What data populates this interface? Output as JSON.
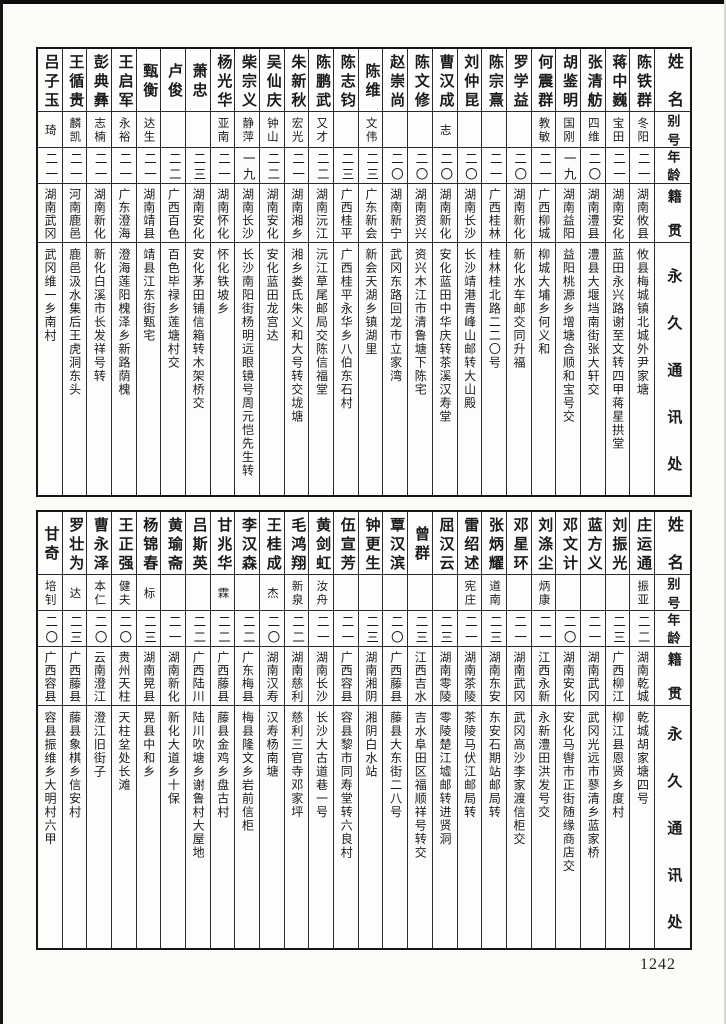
{
  "page": {
    "number": "1242"
  },
  "headers": {
    "name": "姓名",
    "alias": "别号",
    "age": "年龄",
    "native": "籍贯",
    "address": "永久通讯处"
  },
  "tables": [
    {
      "people": [
        {
          "name": "陈铁群",
          "alias": "冬阳",
          "age": "二一",
          "native": "湖南攸县",
          "address": "攸县梅城镇北城外尹家塘"
        },
        {
          "name": "蒋中巍",
          "alias": "宝田",
          "age": "二一",
          "native": "湖南安化",
          "address": "蓝田永兴路谢至文转四甲蒋星拱堂"
        },
        {
          "name": "张清舫",
          "alias": "四维",
          "age": "二〇",
          "native": "湖南澧县",
          "address": "澧县大堰垱南街张大轩交"
        },
        {
          "name": "胡鉴明",
          "alias": "国刚",
          "age": "一九",
          "native": "湖南益阳",
          "address": "益阳桃源乡增塘合顺和宝号交"
        },
        {
          "name": "何震群",
          "alias": "教敏",
          "age": "二一",
          "native": "广西柳城",
          "address": "柳城大埔乡何义和"
        },
        {
          "name": "罗学益",
          "alias": "",
          "age": "二〇",
          "native": "湖南新化",
          "address": "新化水车邮交同升福"
        },
        {
          "name": "陈宗熹",
          "alias": "",
          "age": "二一",
          "native": "广西桂林",
          "address": "桂林桂北路二二〇号"
        },
        {
          "name": "刘仲昆",
          "alias": "",
          "age": "二〇",
          "native": "湖南长沙",
          "address": "长沙靖港青峰山邮转大山殿"
        },
        {
          "name": "曹汉成",
          "alias": "志",
          "age": "二〇",
          "native": "湖南新化",
          "address": "安化蓝田中华庆转茶溪汉寿堂"
        },
        {
          "name": "陈文修",
          "alias": "",
          "age": "二〇",
          "native": "湖南资兴",
          "address": "资兴木江市清鲁塘下陈宅"
        },
        {
          "name": "赵崇尚",
          "alias": "",
          "age": "二〇",
          "native": "湖南新宁",
          "address": "武冈东路回龙市立家湾"
        },
        {
          "name": "陈维",
          "alias": "文伟",
          "age": "二三",
          "native": "广东新会",
          "address": "新会天湖乡镇湖里"
        },
        {
          "name": "陈志钧",
          "alias": "",
          "age": "二三",
          "native": "广西桂平",
          "address": "广西桂平永华乡八伯东石村"
        },
        {
          "name": "陈鹏武",
          "alias": "又才",
          "age": "二二",
          "native": "湖南沅江",
          "address": "沅江草尾邮局交陈信福堂"
        },
        {
          "name": "朱新秋",
          "alias": "宏光",
          "age": "二一",
          "native": "湖南湘乡",
          "address": "湘乡娄氐朱义和大号转交垅塘"
        },
        {
          "name": "吴仙庆",
          "alias": "钟山",
          "age": "二二",
          "native": "湖南安化",
          "address": "安化蓝田龙宫达"
        },
        {
          "name": "柴宗义",
          "alias": "静萍",
          "age": "一九",
          "native": "湖南长沙",
          "address": "长沙南阳街杨明远眼镜号周元恺先生转"
        },
        {
          "name": "杨光华",
          "alias": "亚南",
          "age": "二一",
          "native": "湖南怀化",
          "address": "怀化铁坡乡"
        },
        {
          "name": "萧忠",
          "alias": "",
          "age": "二三",
          "native": "湖南安化",
          "address": "安化茅田铺信箱转木架桥交"
        },
        {
          "name": "卢俊",
          "alias": "",
          "age": "二二",
          "native": "广西百色",
          "address": "百色毕禄乡莲塘村交"
        },
        {
          "name": "甄衡",
          "alias": "达生",
          "age": "二一",
          "native": "湖南靖县",
          "address": "靖县江东街甄宅"
        },
        {
          "name": "王启军",
          "alias": "永裕",
          "age": "二一",
          "native": "广东澄海",
          "address": "澄海莲阳槐泽乡新路荫槐"
        },
        {
          "name": "彭典彝",
          "alias": "志楠",
          "age": "二一",
          "native": "湖南新化",
          "address": "新化白溪市长发祥号转"
        },
        {
          "name": "王循贵",
          "alias": "麟凯",
          "age": "二一",
          "native": "河南鹿邑",
          "address": "鹿邑汲水集后王虎洞东头"
        },
        {
          "name": "吕子玉",
          "alias": "琦",
          "age": "二一",
          "native": "湖南武冈",
          "address": "武冈维一乡南村"
        }
      ]
    },
    {
      "people": [
        {
          "name": "庄运通",
          "alias": "振亚",
          "age": "二二",
          "native": "湖南乾城",
          "address": "乾城胡家塘四号"
        },
        {
          "name": "刘振光",
          "alias": "",
          "age": "二三",
          "native": "广西柳江",
          "address": "柳江县恩贤乡度村"
        },
        {
          "name": "蓝方义",
          "alias": "",
          "age": "二一",
          "native": "湖南武冈",
          "address": "武冈光远市蓼清乡蓝家桥"
        },
        {
          "name": "邓文计",
          "alias": "",
          "age": "二〇",
          "native": "湖南安化",
          "address": "安化马辔市正街随缘商店交"
        },
        {
          "name": "刘涤尘",
          "alias": "炳康",
          "age": "二一",
          "native": "江西永新",
          "address": "永新澧田洪发号交"
        },
        {
          "name": "邓星环",
          "alias": "",
          "age": "二一",
          "native": "湖南武冈",
          "address": "武冈高沙李家渡信柜交"
        },
        {
          "name": "张炳耀",
          "alias": "道南",
          "age": "二三",
          "native": "湖南东安",
          "address": "东安石期站邮局转"
        },
        {
          "name": "雷绍述",
          "alias": "宪庄",
          "age": "二一",
          "native": "湖南茶陵",
          "address": "茶陵马伏江邮局转"
        },
        {
          "name": "屈汉云",
          "alias": "",
          "age": "二三",
          "native": "湖南零陵",
          "address": "零陵楚江墟邮转进贤洞"
        },
        {
          "name": "曾群",
          "alias": "",
          "age": "二三",
          "native": "江西吉水",
          "address": "吉水阜田区福顺祥号转交"
        },
        {
          "name": "覃汉滨",
          "alias": "",
          "age": "二〇",
          "native": "广西藤县",
          "address": "藤县大东街二八号"
        },
        {
          "name": "钟更生",
          "alias": "",
          "age": "二三",
          "native": "湖南湘阴",
          "address": "湘阴白水站"
        },
        {
          "name": "伍宣芳",
          "alias": "",
          "age": "二一",
          "native": "广西容县",
          "address": "容县黎市同寿堂转六良村"
        },
        {
          "name": "黄剑虹",
          "alias": "汝舟",
          "age": "二一",
          "native": "湖南长沙",
          "address": "长沙大古道巷一号"
        },
        {
          "name": "毛鸿翔",
          "alias": "新泉",
          "age": "二二",
          "native": "湖南慈利",
          "address": "慈利三官寺邓家坪"
        },
        {
          "name": "王桂成",
          "alias": "杰",
          "age": "二〇",
          "native": "湖南汉寿",
          "address": "汉寿杨南塘"
        },
        {
          "name": "李汉森",
          "alias": "",
          "age": "二二",
          "native": "广东梅县",
          "address": "梅县隆文乡岩前信柜"
        },
        {
          "name": "甘兆华",
          "alias": "霖",
          "age": "二二",
          "native": "广西藤县",
          "address": "藤县金鸡乡盘古村"
        },
        {
          "name": "吕斯英",
          "alias": "",
          "age": "二二",
          "native": "广西陆川",
          "address": "陆川吹塘乡谢鲁村大屋地"
        },
        {
          "name": "黄瑜斋",
          "alias": "",
          "age": "二一",
          "native": "湖南新化",
          "address": "新化大道乡十保"
        },
        {
          "name": "杨锦春",
          "alias": "标",
          "age": "二三",
          "native": "湖南晃县",
          "address": "晃县中和乡"
        },
        {
          "name": "王正强",
          "alias": "健夫",
          "age": "二〇",
          "native": "贵州天柱",
          "address": "天柱坌处长滩"
        },
        {
          "name": "曹永泽",
          "alias": "本仁",
          "age": "二〇",
          "native": "云南澄江",
          "address": "澄江旧街子"
        },
        {
          "name": "罗壮为",
          "alias": "达",
          "age": "二三",
          "native": "广西藤县",
          "address": "藤县象棋乡信安村"
        },
        {
          "name": "甘奇",
          "alias": "培钊",
          "age": "二〇",
          "native": "广西容县",
          "address": "容县振维乡大明村六甲"
        }
      ]
    }
  ]
}
